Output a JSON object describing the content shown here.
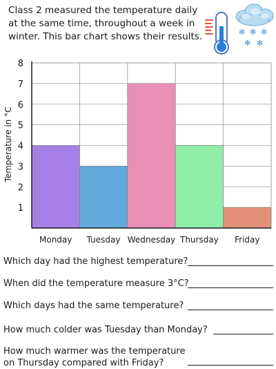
{
  "intro_text": "Class 2 measured the temperature daily at the same time, throughout a week in winter. This bar chart shows their results.",
  "icon": "thermometer-snow-cloud-icon",
  "chart_data": {
    "type": "bar",
    "categories": [
      "Monday",
      "Tuesday",
      "Wednesday",
      "Thursday",
      "Friday"
    ],
    "values": [
      4,
      3,
      7,
      4,
      1
    ],
    "colors": [
      "#a67fe6",
      "#62a9dc",
      "#e98fb4",
      "#90eea9",
      "#e4917b"
    ],
    "ylabel": "Temperature in °C",
    "ylim": [
      0,
      8
    ],
    "yticks": [
      1,
      2,
      3,
      4,
      5,
      6,
      7,
      8
    ],
    "grid": true
  },
  "questions": [
    "Which day had the highest temperature?",
    "When did the temperature measure 3°C?",
    "Which days had the same temperature?",
    "How much colder was Tuesday than Monday?",
    "How much warmer was the temperature on Thursday compared with Friday?"
  ]
}
